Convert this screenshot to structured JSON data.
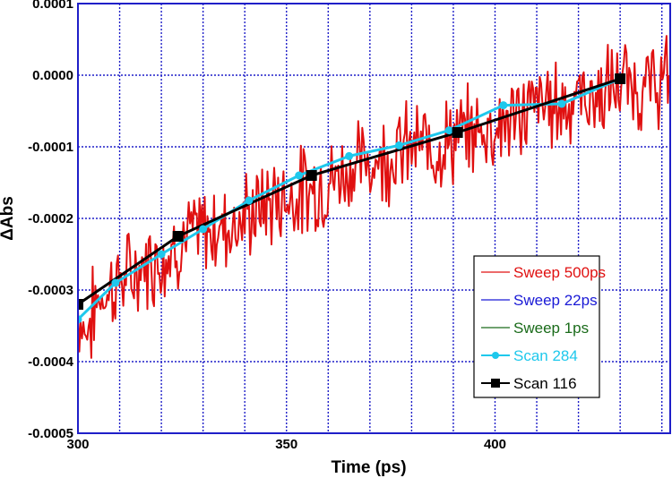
{
  "chart_data": {
    "type": "line",
    "xlabel": "Time (ps)",
    "ylabel": "ΔAbs",
    "xlim": [
      300,
      442
    ],
    "ylim": [
      -0.0005,
      0.0001
    ],
    "x_ticks": [
      300,
      350,
      400
    ],
    "x_tick_labels": [
      "300",
      "350",
      "400"
    ],
    "y_ticks": [
      0.0001,
      0.0,
      -0.0001,
      -0.0002,
      -0.0003,
      -0.0004,
      -0.0005
    ],
    "y_tick_labels": [
      "0.0001",
      "0.0000",
      "-0.0001",
      "-0.0002",
      "-0.0003",
      "-0.0004",
      "-0.0005"
    ],
    "grid": true,
    "legend_position": "bottom-right",
    "series": [
      {
        "name": "Sweep 500ps",
        "color": "#e01010",
        "marker": "none",
        "x": [
          300,
          302,
          305,
          309,
          313,
          317,
          321,
          325,
          330,
          335,
          340,
          345,
          350,
          355,
          360,
          365,
          370,
          375,
          380,
          385,
          390,
          395,
          400,
          405,
          410,
          415,
          420,
          425,
          430,
          435,
          440,
          442
        ],
        "y": [
          -0.00033,
          -0.00036,
          -0.00031,
          -0.00029,
          -0.00028,
          -0.00026,
          -0.00025,
          -0.00023,
          -0.00022,
          -0.00021,
          -0.0002,
          -0.00018,
          -0.00017,
          -0.00016,
          -0.00015,
          -0.00013,
          -0.00012,
          -0.00011,
          -0.0001,
          -0.0001,
          -9e-05,
          -8e-05,
          -7e-05,
          -6e-05,
          -4e-05,
          -4e-05,
          -3e-05,
          -3e-05,
          -1e-05,
          -2e-05,
          -1e-05,
          -1e-05
        ]
      },
      {
        "name": "Sweep 22ps",
        "color": "#1a1ad6",
        "marker": "none",
        "x": [],
        "y": []
      },
      {
        "name": "Sweep 1ps",
        "color": "#1a6b1a",
        "marker": "none",
        "x": [],
        "y": []
      },
      {
        "name": "Scan 284",
        "color": "#1ec8ec",
        "marker": "circle",
        "x": [
          300,
          309,
          320,
          330,
          341,
          353,
          365,
          377,
          389,
          402,
          416,
          430
        ],
        "y": [
          -0.000341,
          -0.00029,
          -0.00025,
          -0.000215,
          -0.000175,
          -0.00014,
          -0.000113,
          -9.8e-05,
          -7.7e-05,
          -4.2e-05,
          -4e-05,
          -5e-06
        ]
      },
      {
        "name": "Scan 116",
        "color": "#000000",
        "marker": "square",
        "x": [
          300,
          324,
          356,
          391,
          430
        ],
        "y": [
          -0.00032,
          -0.000225,
          -0.00014,
          -8e-05,
          -5e-06
        ]
      }
    ]
  }
}
